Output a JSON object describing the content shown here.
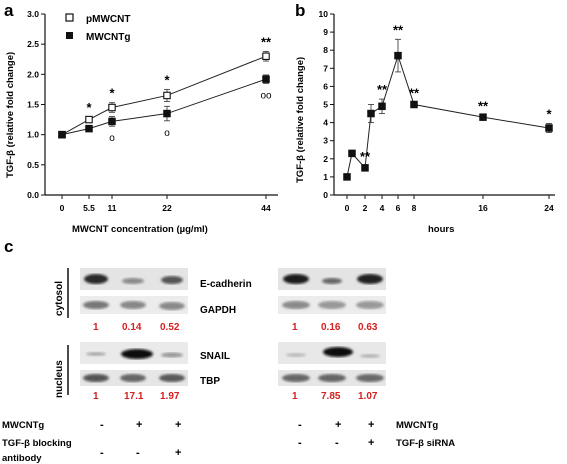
{
  "panels": {
    "a": "a",
    "b": "b",
    "c": "c"
  },
  "chart_data": [
    {
      "type": "line",
      "panel": "a",
      "xlabel": "MWCNT concentration (µg/ml)",
      "ylabel": "TGF-β (relative fold change)",
      "x_ticks": [
        "0",
        "5.5",
        "11",
        "22",
        "44"
      ],
      "y_ticks": [
        "0.0",
        "0.5",
        "1.0",
        "1.5",
        "2.0",
        "2.5",
        "3.0"
      ],
      "ylim": [
        0,
        3.0
      ],
      "x": [
        0,
        5.5,
        11,
        22,
        44
      ],
      "series": [
        {
          "name": "pMWCNT",
          "marker": "open-square",
          "values": [
            1.0,
            1.25,
            1.45,
            1.65,
            2.3
          ],
          "errors": [
            0.03,
            0.04,
            0.08,
            0.1,
            0.08
          ]
        },
        {
          "name": "MWCNTg",
          "marker": "filled-square",
          "values": [
            1.0,
            1.1,
            1.22,
            1.35,
            1.92
          ],
          "errors": [
            0.03,
            0.03,
            0.08,
            0.12,
            0.07
          ]
        }
      ],
      "annotations": [
        {
          "x": 5.5,
          "text": "*"
        },
        {
          "x": 11,
          "text": "*"
        },
        {
          "x": 22,
          "text": "*"
        },
        {
          "x": 44,
          "text": "**"
        },
        {
          "x": 11,
          "text": "o"
        },
        {
          "x": 22,
          "text": "o"
        },
        {
          "x": 44,
          "text": "oo"
        }
      ]
    },
    {
      "type": "line",
      "panel": "b",
      "xlabel": "hours",
      "ylabel": "TGF-β (relative fold change)",
      "x_ticks": [
        "0",
        "2",
        "4",
        "6",
        "8",
        "16",
        "24"
      ],
      "y_ticks": [
        "0",
        "1",
        "2",
        "3",
        "4",
        "5",
        "6",
        "7",
        "8",
        "9",
        "10"
      ],
      "ylim": [
        0,
        10
      ],
      "x": [
        0,
        1,
        2,
        3,
        4,
        6,
        8,
        16,
        24
      ],
      "series": [
        {
          "name": "",
          "marker": "filled-square",
          "values": [
            1.0,
            2.3,
            1.5,
            4.5,
            4.9,
            7.7,
            5.0,
            4.3,
            3.7
          ],
          "errors": [
            0.1,
            0.1,
            0.1,
            0.5,
            0.4,
            0.9,
            0.1,
            0.1,
            0.25
          ]
        }
      ],
      "annotations": [
        {
          "x": 2,
          "text": "**"
        },
        {
          "x": 4,
          "text": "**"
        },
        {
          "x": 6,
          "text": "**"
        },
        {
          "x": 8,
          "text": "**"
        },
        {
          "x": 16,
          "text": "**"
        },
        {
          "x": 24,
          "text": "*"
        }
      ]
    }
  ],
  "blots": {
    "left_side_labels": [
      "cytosol",
      "nucleus"
    ],
    "bands": [
      "E-cadherin",
      "GAPDH",
      "SNAIL",
      "TBP"
    ],
    "left_ratios_cytosol": [
      "1",
      "0.14",
      "0.52"
    ],
    "right_ratios_cytosol": [
      "1",
      "0.16",
      "0.63"
    ],
    "left_ratios_nucleus": [
      "1",
      "17.1",
      "1.97"
    ],
    "right_ratios_nucleus": [
      "1",
      "7.85",
      "1.07"
    ],
    "conditions_left": {
      "row1_label": "MWCNTg",
      "row1_signs": [
        "-",
        "+",
        "+"
      ],
      "row2_label_line1": "TGF-β blocking",
      "row2_label_line2": "antibody",
      "row2_signs": [
        "-",
        "-",
        "+"
      ]
    },
    "conditions_right": {
      "row1_label": "MWCNTg",
      "row1_signs": [
        "-",
        "+",
        "+"
      ],
      "row2_label": "TGF-β siRNA",
      "row2_signs": [
        "-",
        "-",
        "+"
      ]
    }
  }
}
